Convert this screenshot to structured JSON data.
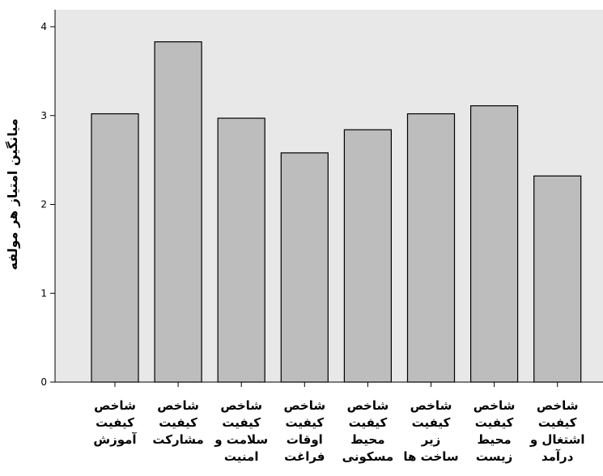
{
  "chart_data": {
    "type": "bar",
    "ylabel": "میانگین امتیاز هر مولفه",
    "xlabel": "",
    "ylim": [
      0,
      4
    ],
    "yticks": [
      0,
      1,
      2,
      3,
      4
    ],
    "grid": false,
    "categories": [
      [
        "شاخص",
        "کیفیت",
        "آموزش"
      ],
      [
        "شاخص",
        "کیفیت",
        "مشارکت"
      ],
      [
        "شاخص",
        "کیفیت",
        "سلامت و",
        "امنیت"
      ],
      [
        "شاخص",
        "کیفیت",
        "اوقات",
        "فراغت"
      ],
      [
        "شاخص",
        "کیفیت",
        "محیط",
        "مسکونی"
      ],
      [
        "شاخص",
        "کیفیت",
        "زیر",
        "ساخت ها"
      ],
      [
        "شاخص",
        "کیفیت",
        "محیط",
        "زیست"
      ],
      [
        "شاخص",
        "کیفیت",
        "اشتغال و",
        "درآمد"
      ]
    ],
    "values": [
      3.02,
      3.83,
      2.97,
      2.58,
      2.84,
      3.02,
      3.11,
      2.32
    ],
    "colors": {
      "plot_background": "#e8e8e8",
      "bar_fill": "#bdbdbd",
      "bar_stroke": "#000000",
      "axis": "#000000"
    }
  }
}
